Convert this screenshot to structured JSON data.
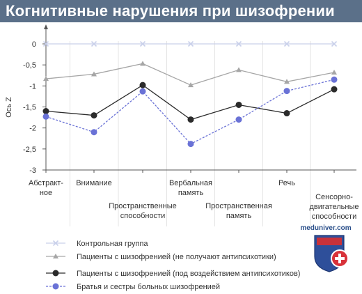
{
  "title": "Когнитивные нарушения при шизофрении",
  "watermark": "meduniver.com",
  "chart_data": {
    "type": "line",
    "ylabel": "Ось Z",
    "ylim": [
      -3,
      0
    ],
    "yticks": [
      "0",
      "-0,5",
      "-1",
      "-1,5",
      "-2",
      "-2,5",
      "-3"
    ],
    "categories": [
      [
        "Абстракт-",
        "ное"
      ],
      [
        "Внимание"
      ],
      [
        "Пространственные",
        "способности"
      ],
      [
        "Вербальная",
        "память"
      ],
      [
        "Пространственная",
        "память"
      ],
      [
        "Речь"
      ],
      [
        "Сенсорно-",
        "двигательные",
        "способности"
      ]
    ],
    "series": [
      {
        "name": "Контрольная группа",
        "color": "#c9d0ea",
        "marker": "cross",
        "dashed": false,
        "values": [
          0,
          0,
          0,
          0,
          0,
          0,
          0
        ]
      },
      {
        "name": "Пациенты с шизофренией (не получают антипсихотики)",
        "color": "#a6a6a6",
        "marker": "triangle",
        "dashed": false,
        "values": [
          -0.83,
          -0.72,
          -0.47,
          -0.98,
          -0.62,
          -0.9,
          -0.68
        ]
      },
      {
        "name": "Пациенты с шизофренией (под воздействием антипсихотиков)",
        "color": "#2b2b2b",
        "marker": "circle",
        "dashed": false,
        "values": [
          -1.6,
          -1.7,
          -0.98,
          -1.8,
          -1.45,
          -1.65,
          -1.08
        ]
      },
      {
        "name": "Братья и сестры больных шизофренией",
        "color": "#6a72d6",
        "marker": "circle",
        "dashed": true,
        "values": [
          -1.73,
          -2.1,
          -1.13,
          -2.38,
          -1.8,
          -1.12,
          -0.85
        ]
      }
    ]
  }
}
